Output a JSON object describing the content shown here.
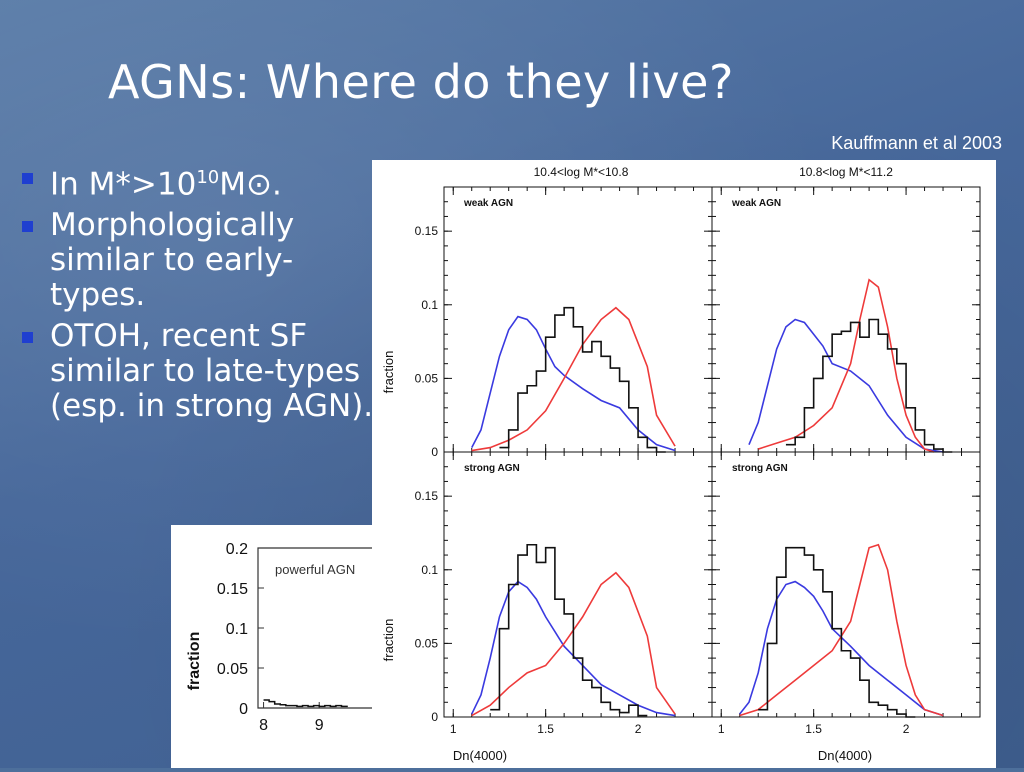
{
  "slide": {
    "title": "AGNs: Where do they live?",
    "citation": "Kauffmann et al 2003",
    "bullets": [
      {
        "pre": "In M*>10",
        "sup": "10",
        "post": "M⊙."
      },
      {
        "text": "Morphologically similar to early-types."
      },
      {
        "text": "OTOH, recent SF similar to late-types (esp. in strong AGN)."
      }
    ],
    "colors": {
      "background": "#4d6f9b",
      "bullet": "#1f3fd0",
      "text": "#ffffff"
    }
  },
  "chart_data": [
    {
      "type": "line",
      "ylabel": "fraction",
      "xlabel": "Dn(4000)",
      "xlim": [
        0.95,
        2.4
      ],
      "ylim": [
        0,
        0.18
      ],
      "yticks": [
        "0",
        "0.05",
        "0.1",
        "0.15"
      ],
      "xticks": [
        "1",
        "1.5",
        "2"
      ],
      "column_titles": [
        "10.4<log  M*<10.8",
        "10.8<log  M*<11.2"
      ],
      "panels": [
        {
          "label": "weak AGN",
          "series": [
            {
              "color": "blue",
              "x": [
                1.1,
                1.15,
                1.2,
                1.25,
                1.3,
                1.35,
                1.4,
                1.45,
                1.5,
                1.55,
                1.6,
                1.7,
                1.8,
                1.9,
                2.0,
                2.1,
                2.2
              ],
              "y": [
                0.003,
                0.015,
                0.04,
                0.065,
                0.083,
                0.092,
                0.09,
                0.083,
                0.07,
                0.058,
                0.052,
                0.043,
                0.035,
                0.03,
                0.015,
                0.005,
                0.001
              ]
            },
            {
              "color": "red",
              "x": [
                1.1,
                1.2,
                1.3,
                1.4,
                1.5,
                1.6,
                1.7,
                1.8,
                1.88,
                1.95,
                2.05,
                2.1,
                2.2
              ],
              "y": [
                0.001,
                0.003,
                0.008,
                0.015,
                0.028,
                0.05,
                0.073,
                0.09,
                0.098,
                0.09,
                0.058,
                0.025,
                0.004
              ]
            },
            {
              "color": "black",
              "step": true,
              "x": [
                1.25,
                1.3,
                1.35,
                1.4,
                1.45,
                1.5,
                1.55,
                1.6,
                1.65,
                1.7,
                1.75,
                1.8,
                1.85,
                1.9,
                1.95,
                2.0,
                2.05,
                2.1
              ],
              "y": [
                0.003,
                0.015,
                0.04,
                0.045,
                0.055,
                0.078,
                0.093,
                0.098,
                0.085,
                0.068,
                0.075,
                0.065,
                0.057,
                0.048,
                0.03,
                0.01,
                0.003,
                0.0
              ]
            }
          ]
        },
        {
          "label": "weak AGN",
          "series": [
            {
              "color": "blue",
              "x": [
                1.15,
                1.2,
                1.25,
                1.3,
                1.35,
                1.4,
                1.45,
                1.5,
                1.55,
                1.6,
                1.7,
                1.8,
                1.9,
                2.0,
                2.1,
                2.2
              ],
              "y": [
                0.005,
                0.02,
                0.045,
                0.07,
                0.085,
                0.09,
                0.088,
                0.08,
                0.072,
                0.06,
                0.055,
                0.045,
                0.025,
                0.01,
                0.002,
                0.0
              ]
            },
            {
              "color": "red",
              "x": [
                1.2,
                1.3,
                1.4,
                1.5,
                1.6,
                1.7,
                1.75,
                1.8,
                1.85,
                1.9,
                1.95,
                2.0,
                2.05,
                2.1,
                2.15
              ],
              "y": [
                0.002,
                0.006,
                0.01,
                0.018,
                0.03,
                0.06,
                0.09,
                0.117,
                0.112,
                0.085,
                0.05,
                0.025,
                0.01,
                0.002,
                0.0
              ]
            },
            {
              "color": "black",
              "step": true,
              "x": [
                1.35,
                1.4,
                1.45,
                1.5,
                1.55,
                1.6,
                1.65,
                1.7,
                1.75,
                1.8,
                1.85,
                1.9,
                1.95,
                2.0,
                2.05,
                2.1,
                2.15,
                2.2
              ],
              "y": [
                0.005,
                0.01,
                0.03,
                0.05,
                0.065,
                0.08,
                0.082,
                0.088,
                0.078,
                0.09,
                0.08,
                0.07,
                0.06,
                0.03,
                0.015,
                0.005,
                0.002,
                0.0
              ]
            }
          ]
        },
        {
          "label": "strong AGN",
          "series": [
            {
              "color": "blue",
              "x": [
                1.1,
                1.15,
                1.2,
                1.25,
                1.3,
                1.35,
                1.4,
                1.45,
                1.5,
                1.55,
                1.6,
                1.7,
                1.8,
                1.9,
                2.0,
                2.1,
                2.2
              ],
              "y": [
                0.002,
                0.015,
                0.04,
                0.068,
                0.085,
                0.092,
                0.088,
                0.08,
                0.068,
                0.058,
                0.048,
                0.035,
                0.022,
                0.015,
                0.008,
                0.003,
                0.001
              ]
            },
            {
              "color": "red",
              "x": [
                1.1,
                1.2,
                1.3,
                1.4,
                1.5,
                1.6,
                1.7,
                1.8,
                1.88,
                1.95,
                2.05,
                2.1,
                2.2
              ],
              "y": [
                0.001,
                0.008,
                0.02,
                0.03,
                0.035,
                0.05,
                0.068,
                0.09,
                0.098,
                0.088,
                0.055,
                0.02,
                0.002
              ]
            },
            {
              "color": "black",
              "step": true,
              "x": [
                1.2,
                1.25,
                1.3,
                1.35,
                1.4,
                1.45,
                1.5,
                1.55,
                1.6,
                1.65,
                1.7,
                1.75,
                1.8,
                1.85,
                1.9,
                1.95,
                2.0
              ],
              "y": [
                0.005,
                0.06,
                0.09,
                0.11,
                0.117,
                0.105,
                0.115,
                0.08,
                0.07,
                0.04,
                0.025,
                0.02,
                0.01,
                0.005,
                0.003,
                0.008,
                0.001
              ]
            }
          ]
        },
        {
          "label": "strong AGN",
          "series": [
            {
              "color": "blue",
              "x": [
                1.1,
                1.15,
                1.2,
                1.25,
                1.3,
                1.35,
                1.4,
                1.45,
                1.5,
                1.55,
                1.6,
                1.7,
                1.8,
                1.9,
                2.0,
                2.1,
                2.2
              ],
              "y": [
                0.002,
                0.01,
                0.03,
                0.06,
                0.08,
                0.09,
                0.092,
                0.088,
                0.082,
                0.072,
                0.06,
                0.048,
                0.035,
                0.025,
                0.015,
                0.005,
                0.001
              ]
            },
            {
              "color": "red",
              "x": [
                1.1,
                1.2,
                1.3,
                1.4,
                1.5,
                1.6,
                1.7,
                1.75,
                1.8,
                1.85,
                1.9,
                1.95,
                2.0,
                2.05,
                2.1,
                2.2
              ],
              "y": [
                0.001,
                0.005,
                0.015,
                0.025,
                0.035,
                0.045,
                0.065,
                0.09,
                0.115,
                0.117,
                0.1,
                0.065,
                0.035,
                0.015,
                0.005,
                0.001
              ]
            },
            {
              "color": "black",
              "step": true,
              "x": [
                1.2,
                1.25,
                1.3,
                1.35,
                1.4,
                1.45,
                1.5,
                1.55,
                1.6,
                1.65,
                1.7,
                1.75,
                1.8,
                1.85,
                1.9,
                1.95,
                2.0
              ],
              "y": [
                0.005,
                0.05,
                0.095,
                0.115,
                0.115,
                0.11,
                0.1,
                0.085,
                0.06,
                0.045,
                0.04,
                0.025,
                0.01,
                0.008,
                0.005,
                0.002,
                0.0
              ]
            }
          ]
        }
      ]
    },
    {
      "type": "line",
      "panel_label": "powerful AGN",
      "ylabel": "fraction",
      "yticks": [
        "0",
        "0.05",
        "0.1",
        "0.15",
        "0.2"
      ],
      "xticks": [
        "8",
        "9"
      ],
      "xlim": [
        7.9,
        10.2
      ],
      "ylim": [
        0,
        0.2
      ],
      "series": [
        {
          "color": "black",
          "step": true,
          "x": [
            8.0,
            8.1,
            8.2,
            8.3,
            8.4,
            8.5,
            8.6,
            8.7,
            8.8,
            8.9,
            9.0,
            9.1,
            9.2,
            9.3,
            9.4,
            9.5
          ],
          "y": [
            0.01,
            0.008,
            0.005,
            0.004,
            0.003,
            0.003,
            0.002,
            0.003,
            0.002,
            0.003,
            0.002,
            0.003,
            0.002,
            0.003,
            0.002,
            0.003
          ]
        }
      ]
    }
  ]
}
